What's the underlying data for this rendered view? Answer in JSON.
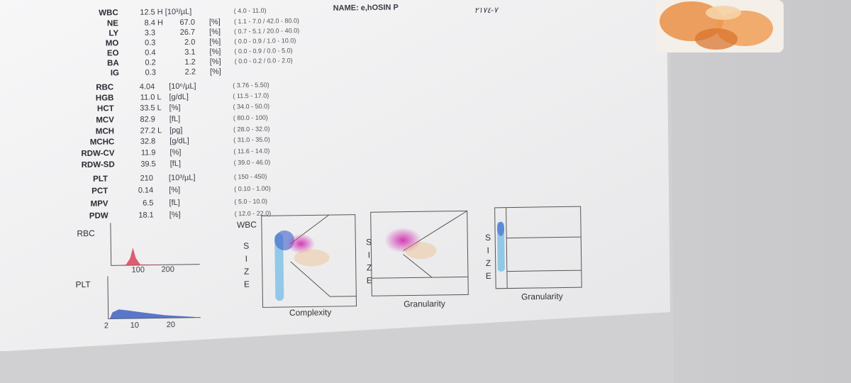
{
  "patient": {
    "name_label": "NAME:",
    "name": "e,hOSIN P"
  },
  "handwritten_note": "٧-٢١٧٤",
  "wbc_differential": {
    "rows": [
      {
        "code": "WBC",
        "count": "12.5",
        "flag": "H",
        "unit": "[10³/µL]",
        "range": "( 4.0 - 11.0)"
      },
      {
        "code": "NE",
        "count": "8.4",
        "flag": "H",
        "percent": "67.0",
        "unit": "[%]",
        "range": "( 1.1 - 7.0 / 42.0 - 80.0)"
      },
      {
        "code": "LY",
        "count": "3.3",
        "percent": "26.7",
        "unit": "[%]",
        "range": "( 0.7 - 5.1 / 20.0 - 40.0)"
      },
      {
        "code": "MO",
        "count": "0.3",
        "percent": "2.0",
        "unit": "[%]",
        "range": "( 0.0 - 0.9 / 1.0 - 10.0)"
      },
      {
        "code": "EO",
        "count": "0.4",
        "percent": "3.1",
        "unit": "[%]",
        "range": "( 0.0 - 0.9 / 0.0 - 5.0)"
      },
      {
        "code": "BA",
        "count": "0.2",
        "percent": "1.2",
        "unit": "[%]",
        "range": "( 0.0 - 0.2 / 0.0 - 2.0)"
      },
      {
        "code": "IG",
        "count": "0.3",
        "percent": "2.2",
        "unit": "[%]"
      }
    ]
  },
  "red_cell_indices": {
    "rows": [
      {
        "code": "RBC",
        "value": "4.04",
        "unit": "[10⁶/µL]",
        "range": "( 3.76 - 5.50)"
      },
      {
        "code": "HGB",
        "value": "11.0",
        "flag": "L",
        "unit": "[g/dL]",
        "range": "( 11.5 - 17.0)"
      },
      {
        "code": "HCT",
        "value": "33.5",
        "flag": "L",
        "unit": "[%]",
        "range": "( 34.0 - 50.0)"
      },
      {
        "code": "MCV",
        "value": "82.9",
        "unit": "[fL]",
        "range": "( 80.0 - 100)"
      },
      {
        "code": "MCH",
        "value": "27.2",
        "flag": "L",
        "unit": "[pg]",
        "range": "( 28.0 - 32.0)"
      },
      {
        "code": "MCHC",
        "value": "32.8",
        "unit": "[g/dL]",
        "range": "( 31.0 - 35.0)"
      },
      {
        "code": "RDW-CV",
        "value": "11.9",
        "unit": "[%]",
        "range": "( 11.6 - 14.0)"
      },
      {
        "code": "RDW-SD",
        "value": "39.5",
        "unit": "[fL]",
        "range": "( 39.0 - 46.0)"
      }
    ]
  },
  "platelet_indices": {
    "rows": [
      {
        "code": "PLT",
        "value": "210",
        "unit": "[10³/µL]",
        "range": "( 150 - 450)"
      },
      {
        "code": "PCT",
        "value": "0.14",
        "unit": "[%]",
        "range": "( 0.10 - 1.00)"
      },
      {
        "code": "MPV",
        "value": "6.5",
        "unit": "[fL]",
        "range": "( 5.0 - 10.0)"
      },
      {
        "code": "PDW",
        "value": "18.1",
        "unit": "[%]",
        "range": "( 12.0 - 22.0)"
      }
    ]
  },
  "histograms": [
    {
      "label": "RBC",
      "ticks": [
        "100",
        "200"
      ]
    },
    {
      "label": "PLT",
      "ticks": [
        "2",
        "10",
        "20"
      ]
    }
  ],
  "scattergrams": [
    {
      "title": "WBC",
      "y_label": "SIZE",
      "x_label": "Complexity"
    },
    {
      "y_label": "SIZE",
      "x_label": "Granularity"
    },
    {
      "y_label": "SIZE",
      "x_label": "Granularity"
    }
  ]
}
